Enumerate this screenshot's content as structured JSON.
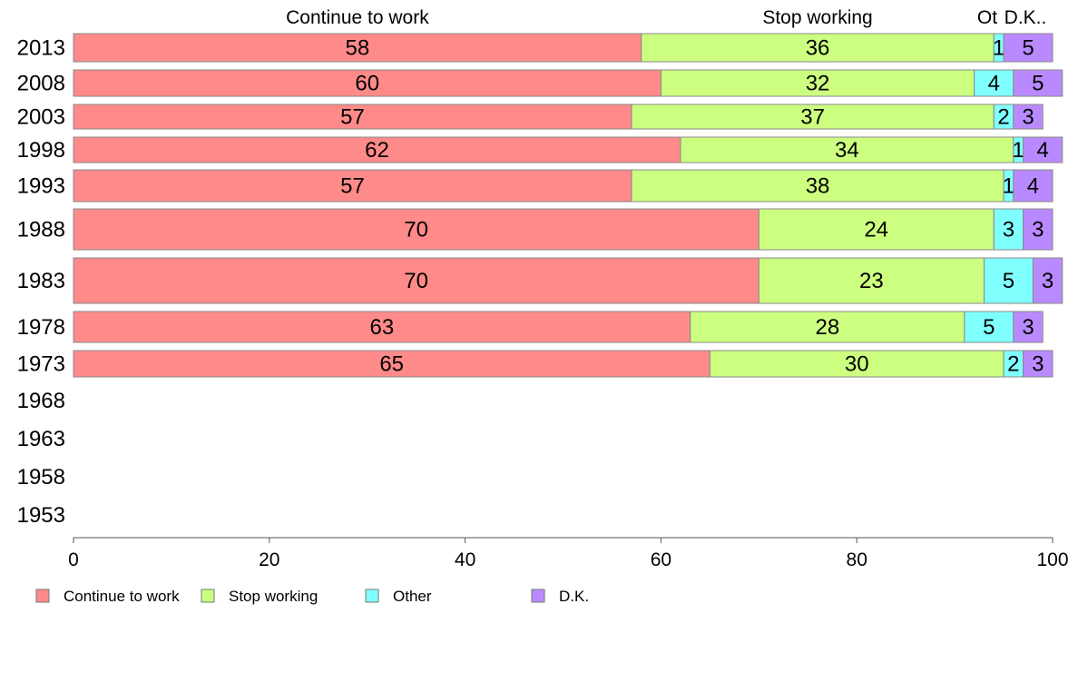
{
  "chart_data": {
    "type": "bar",
    "orientation": "horizontal",
    "stacked": true,
    "categories": [
      "2013",
      "2008",
      "2003",
      "1998",
      "1993",
      "1988",
      "1983",
      "1978",
      "1973",
      "1968",
      "1963",
      "1958",
      "1953"
    ],
    "series": [
      {
        "name": "Continue to work",
        "color": "#ff8a8a",
        "values": [
          58,
          60,
          57,
          62,
          57,
          70,
          70,
          63,
          65,
          null,
          null,
          null,
          null
        ]
      },
      {
        "name": "Stop working",
        "color": "#ccff80",
        "values": [
          36,
          32,
          37,
          34,
          38,
          24,
          23,
          28,
          30,
          null,
          null,
          null,
          null
        ]
      },
      {
        "name": "Other",
        "color": "#80ffff",
        "values": [
          1,
          4,
          2,
          1,
          1,
          3,
          5,
          5,
          2,
          null,
          null,
          null,
          null
        ]
      },
      {
        "name": "D.K.",
        "color": "#b98aff",
        "values": [
          5,
          5,
          3,
          4,
          4,
          3,
          3,
          3,
          3,
          null,
          null,
          null,
          null
        ]
      }
    ],
    "top_labels": [
      "Continue to work",
      "Stop working",
      "Ot",
      "D.K.."
    ],
    "xlim": [
      0,
      100
    ],
    "xticks": [
      "0",
      "20",
      "40",
      "60",
      "80",
      "100"
    ],
    "grid": false,
    "legend_position": "bottom-left"
  }
}
